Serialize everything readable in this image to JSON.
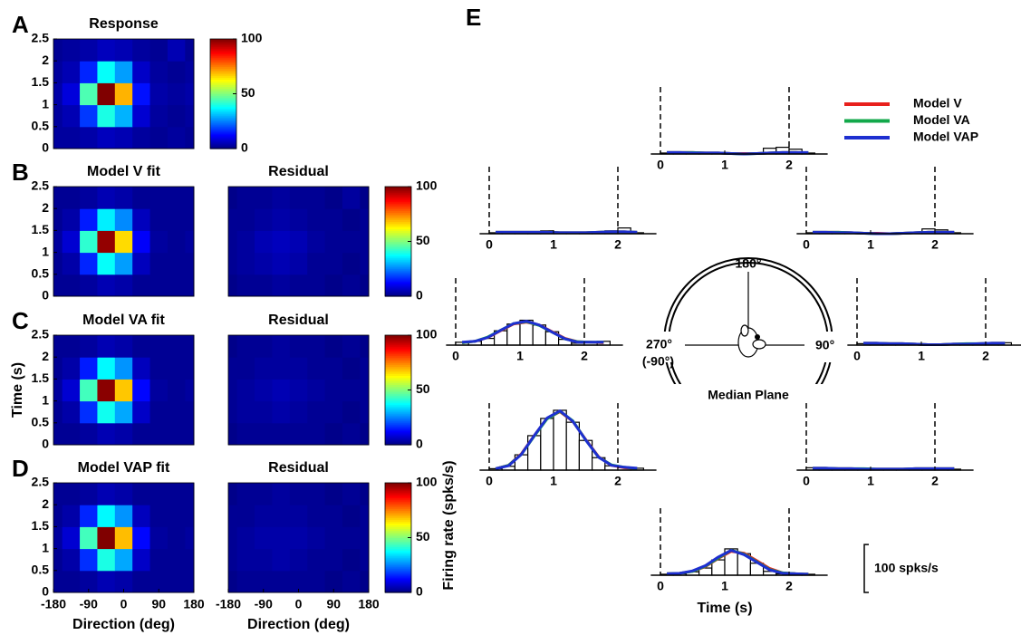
{
  "chart_data": [
    {
      "type": "heatmap",
      "panel": "A",
      "title": "Response",
      "x": [
        -180,
        -135,
        -90,
        -45,
        0,
        45,
        90,
        135,
        180
      ],
      "y": [
        0.25,
        0.75,
        1.25,
        1.75,
        2.25
      ],
      "z": [
        [
          3,
          3,
          4,
          6,
          5,
          3,
          2,
          3,
          2
        ],
        [
          3,
          5,
          18,
          40,
          30,
          8,
          3,
          2,
          3
        ],
        [
          4,
          9,
          45,
          100,
          70,
          14,
          4,
          3,
          4
        ],
        [
          3,
          5,
          16,
          38,
          28,
          7,
          3,
          2,
          3
        ],
        [
          2,
          3,
          4,
          6,
          5,
          3,
          2,
          5,
          2
        ]
      ],
      "xlim": [
        -180,
        180
      ],
      "ylim": [
        0,
        2.5
      ],
      "yticks": [
        0,
        0.5,
        1,
        1.5,
        2,
        2.5
      ],
      "zlim": [
        0,
        100
      ],
      "zticks": [
        0,
        50,
        100
      ],
      "colormap": "jet",
      "colorbar": true
    },
    {
      "type": "heatmap",
      "panel": "B",
      "title": "Model V fit",
      "x": [
        -180,
        -135,
        -90,
        -45,
        0,
        45,
        90,
        135,
        180
      ],
      "y": [
        0.25,
        0.75,
        1.25,
        1.75,
        2.25
      ],
      "z": [
        [
          2,
          2,
          3,
          5,
          4,
          2,
          2,
          2,
          2
        ],
        [
          2,
          4,
          16,
          38,
          28,
          6,
          2,
          2,
          2
        ],
        [
          3,
          8,
          42,
          98,
          66,
          12,
          3,
          2,
          3
        ],
        [
          2,
          4,
          15,
          36,
          26,
          6,
          2,
          2,
          2
        ],
        [
          2,
          2,
          3,
          5,
          4,
          2,
          2,
          2,
          2
        ]
      ],
      "xlim": [
        -180,
        180
      ],
      "ylim": [
        0,
        2.5
      ],
      "yticks": [
        0,
        0.5,
        1,
        1.5,
        2,
        2.5
      ],
      "zlim": [
        0,
        100
      ],
      "colormap": "jet"
    },
    {
      "type": "heatmap",
      "title": "Residual",
      "x": [
        -180,
        -135,
        -90,
        -45,
        0,
        45,
        90,
        135,
        180
      ],
      "y": [
        0.25,
        0.75,
        1.25,
        1.75,
        2.25
      ],
      "z": [
        [
          1,
          2,
          2,
          3,
          2,
          2,
          1,
          2,
          1
        ],
        [
          2,
          3,
          4,
          5,
          4,
          2,
          2,
          1,
          2
        ],
        [
          2,
          3,
          5,
          6,
          5,
          3,
          2,
          2,
          2
        ],
        [
          2,
          2,
          3,
          4,
          3,
          2,
          2,
          1,
          2
        ],
        [
          1,
          2,
          2,
          3,
          2,
          2,
          1,
          3,
          1
        ]
      ],
      "xlim": [
        -180,
        180
      ],
      "ylim": [
        0,
        2.5
      ],
      "zlim": [
        0,
        100
      ],
      "zticks": [
        0,
        50,
        100
      ],
      "colormap": "jet",
      "colorbar": true
    },
    {
      "type": "heatmap",
      "panel": "C",
      "title": "Model VA fit",
      "ylabel": "Time (s)",
      "x": [
        -180,
        -135,
        -90,
        -45,
        0,
        45,
        90,
        135,
        180
      ],
      "y": [
        0.25,
        0.75,
        1.25,
        1.75,
        2.25
      ],
      "z": [
        [
          2,
          2,
          3,
          5,
          4,
          2,
          2,
          2,
          2
        ],
        [
          2,
          4,
          17,
          39,
          29,
          7,
          2,
          2,
          2
        ],
        [
          3,
          8,
          44,
          99,
          68,
          13,
          3,
          2,
          3
        ],
        [
          2,
          4,
          15,
          37,
          27,
          6,
          2,
          2,
          2
        ],
        [
          2,
          2,
          3,
          5,
          4,
          2,
          2,
          2,
          2
        ]
      ],
      "xlim": [
        -180,
        180
      ],
      "ylim": [
        0,
        2.5
      ],
      "yticks": [
        0,
        0.5,
        1,
        1.5,
        2,
        2.5
      ],
      "zlim": [
        0,
        100
      ],
      "colormap": "jet"
    },
    {
      "type": "heatmap",
      "title": "Residual",
      "x": [
        -180,
        -135,
        -90,
        -45,
        0,
        45,
        90,
        135,
        180
      ],
      "y": [
        0.25,
        0.75,
        1.25,
        1.75,
        2.25
      ],
      "z": [
        [
          1,
          2,
          2,
          2,
          2,
          2,
          1,
          2,
          1
        ],
        [
          2,
          3,
          3,
          4,
          3,
          2,
          2,
          1,
          2
        ],
        [
          2,
          3,
          4,
          5,
          4,
          3,
          2,
          2,
          2
        ],
        [
          2,
          2,
          3,
          3,
          3,
          2,
          2,
          1,
          2
        ],
        [
          1,
          2,
          2,
          3,
          2,
          2,
          1,
          2,
          1
        ]
      ],
      "xlim": [
        -180,
        180
      ],
      "ylim": [
        0,
        2.5
      ],
      "zlim": [
        0,
        100
      ],
      "zticks": [
        0,
        50,
        100
      ],
      "colormap": "jet",
      "colorbar": true
    },
    {
      "type": "heatmap",
      "panel": "D",
      "title": "Model VAP fit",
      "xlabel": "Direction (deg)",
      "x": [
        -180,
        -135,
        -90,
        -45,
        0,
        45,
        90,
        135,
        180
      ],
      "y": [
        0.25,
        0.75,
        1.25,
        1.75,
        2.25
      ],
      "z": [
        [
          2,
          2,
          3,
          5,
          4,
          2,
          2,
          2,
          2
        ],
        [
          2,
          4,
          17,
          40,
          29,
          7,
          2,
          2,
          2
        ],
        [
          3,
          8,
          44,
          100,
          69,
          13,
          3,
          2,
          3
        ],
        [
          2,
          4,
          16,
          37,
          27,
          6,
          2,
          2,
          2
        ],
        [
          2,
          2,
          3,
          5,
          4,
          2,
          2,
          2,
          2
        ]
      ],
      "xlim": [
        -180,
        180
      ],
      "ylim": [
        0,
        2.5
      ],
      "xticks": [
        -180,
        -90,
        0,
        90,
        180
      ],
      "yticks": [
        0,
        0.5,
        1,
        1.5,
        2,
        2.5
      ],
      "zlim": [
        0,
        100
      ],
      "colormap": "jet"
    },
    {
      "type": "heatmap",
      "title": "Residual",
      "xlabel": "Direction (deg)",
      "x": [
        -180,
        -135,
        -90,
        -45,
        0,
        45,
        90,
        135,
        180
      ],
      "y": [
        0.25,
        0.75,
        1.25,
        1.75,
        2.25
      ],
      "z": [
        [
          1,
          2,
          2,
          2,
          2,
          2,
          1,
          2,
          1
        ],
        [
          2,
          3,
          3,
          4,
          3,
          2,
          2,
          1,
          2
        ],
        [
          2,
          3,
          4,
          4,
          4,
          3,
          2,
          2,
          2
        ],
        [
          2,
          2,
          3,
          3,
          3,
          2,
          2,
          1,
          2
        ],
        [
          1,
          2,
          2,
          3,
          2,
          2,
          1,
          2,
          1
        ]
      ],
      "xlim": [
        -180,
        180
      ],
      "ylim": [
        0,
        2.5
      ],
      "xticks": [
        -180,
        -90,
        0,
        90,
        180
      ],
      "zlim": [
        0,
        100
      ],
      "zticks": [
        0,
        50,
        100
      ],
      "colormap": "jet",
      "colorbar": true
    },
    {
      "type": "psth",
      "panel": "E",
      "xlabel": "Time (s)",
      "ylabel": "Firing rate (spks/s)",
      "xlim": [
        -0.15,
        2.6
      ],
      "ylim": [
        0,
        140
      ],
      "xticks": [
        0,
        1,
        2
      ],
      "markers": [
        0,
        2
      ],
      "scale": {
        "value": 100,
        "label": "100 spks/s"
      },
      "circle_labels": [
        "180°",
        "90°",
        "270°",
        "(-90°)"
      ],
      "center_label": "Median Plane",
      "models": [
        {
          "name": "Model V",
          "color": "#e8201c"
        },
        {
          "name": "Model VA",
          "color": "#12a84a"
        },
        {
          "name": "Model VAP",
          "color": "#1e2fd0"
        }
      ],
      "bins": [
        0,
        0.2,
        0.4,
        0.6,
        0.8,
        1,
        1.2,
        1.4,
        1.6,
        1.8,
        2,
        2.2,
        2.4
      ],
      "x": [
        0.1,
        0.3,
        0.5,
        0.7,
        0.9,
        1.1,
        1.3,
        1.5,
        1.7,
        1.9,
        2.1,
        2.3
      ],
      "panels": [
        {
          "counts": [
            2,
            1,
            2,
            1,
            1,
            2,
            1,
            1,
            12,
            14,
            10,
            2
          ],
          "series": [
            {
              "values": [
                3,
                3,
                3,
                2,
                2,
                1,
                1,
                1,
                2,
                3,
                3,
                2
              ]
            },
            {
              "values": [
                3,
                3,
                3,
                2,
                2,
                1,
                0,
                1,
                2,
                3,
                3,
                2
              ]
            },
            {
              "values": [
                3,
                3,
                2,
                2,
                2,
                1,
                0,
                1,
                2,
                3,
                3,
                3
              ]
            }
          ]
        },
        {
          "counts": [
            2,
            1,
            2,
            1,
            1,
            1,
            1,
            2,
            3,
            10,
            8,
            2
          ],
          "series": [
            {
              "values": [
                3,
                3,
                3,
                2,
                1,
                1,
                0,
                1,
                2,
                3,
                3,
                3
              ]
            },
            {
              "values": [
                3,
                3,
                3,
                2,
                1,
                0,
                0,
                1,
                2,
                3,
                3,
                3
              ]
            },
            {
              "values": [
                3,
                3,
                2,
                2,
                1,
                0,
                0,
                1,
                2,
                3,
                3,
                3
              ]
            }
          ]
        },
        {
          "counts": [
            3,
            2,
            2,
            2,
            2,
            1,
            1,
            2,
            2,
            2,
            4,
            5
          ],
          "series": [
            {
              "values": [
                4,
                4,
                3,
                3,
                2,
                1,
                1,
                2,
                2,
                3,
                4,
                4
              ]
            },
            {
              "values": [
                4,
                4,
                3,
                3,
                2,
                1,
                1,
                2,
                3,
                3,
                4,
                4
              ]
            },
            {
              "values": [
                4,
                4,
                3,
                3,
                2,
                1,
                1,
                2,
                2,
                3,
                4,
                4
              ]
            }
          ]
        },
        {
          "counts": [
            5,
            4,
            3,
            2,
            3,
            2,
            1,
            2,
            2,
            2,
            3,
            2
          ],
          "series": [
            {
              "values": [
                4,
                4,
                3,
                3,
                2,
                2,
                2,
                2,
                3,
                3,
                3,
                3
              ]
            },
            {
              "values": [
                4,
                4,
                3,
                3,
                3,
                2,
                2,
                2,
                3,
                3,
                3,
                3
              ]
            },
            {
              "values": [
                4,
                4,
                3,
                3,
                2,
                2,
                2,
                2,
                3,
                3,
                3,
                3
              ]
            }
          ]
        },
        {
          "counts": [
            2,
            3,
            7,
            15,
            32,
            55,
            45,
            25,
            8,
            3,
            2,
            2
          ],
          "series": [
            {
              "values": [
                3,
                4,
                8,
                18,
                35,
                50,
                46,
                30,
                14,
                5,
                3,
                2
              ]
            },
            {
              "values": [
                3,
                4,
                8,
                19,
                36,
                52,
                44,
                28,
                12,
                5,
                3,
                2
              ]
            },
            {
              "values": [
                3,
                4,
                9,
                20,
                38,
                52,
                43,
                27,
                11,
                4,
                3,
                2
              ]
            }
          ]
        },
        {
          "counts": [
            3,
            8,
            32,
            72,
            108,
            125,
            100,
            62,
            26,
            9,
            5,
            4
          ],
          "series": [
            {
              "values": [
                3,
                10,
                34,
                72,
                108,
                122,
                102,
                64,
                28,
                10,
                5,
                3
              ]
            },
            {
              "values": [
                3,
                10,
                33,
                71,
                107,
                123,
                103,
                63,
                27,
                11,
                6,
                3
              ]
            },
            {
              "values": [
                3,
                9,
                33,
                72,
                109,
                124,
                102,
                63,
                27,
                10,
                6,
                4
              ]
            }
          ]
        },
        {
          "counts": [
            6,
            8,
            14,
            30,
            44,
            52,
            42,
            28,
            12,
            4,
            6,
            8
          ],
          "series": [
            {
              "values": [
                5,
                8,
                16,
                30,
                44,
                48,
                42,
                28,
                14,
                7,
                6,
                5
              ]
            },
            {
              "values": [
                5,
                8,
                17,
                31,
                45,
                49,
                41,
                27,
                13,
                7,
                6,
                6
              ]
            },
            {
              "values": [
                6,
                8,
                16,
                31,
                45,
                50,
                42,
                27,
                13,
                6,
                6,
                6
              ]
            }
          ]
        },
        {
          "counts": [
            2,
            1,
            2,
            3,
            6,
            2,
            1,
            1,
            3,
            6,
            12,
            2
          ],
          "series": [
            {
              "values": [
                3,
                3,
                3,
                3,
                3,
                2,
                2,
                2,
                3,
                4,
                4,
                3
              ]
            },
            {
              "values": [
                3,
                3,
                3,
                3,
                3,
                2,
                2,
                2,
                3,
                4,
                4,
                3
              ]
            },
            {
              "values": [
                3,
                3,
                3,
                3,
                3,
                2,
                2,
                2,
                3,
                4,
                4,
                3
              ]
            }
          ]
        }
      ]
    }
  ]
}
